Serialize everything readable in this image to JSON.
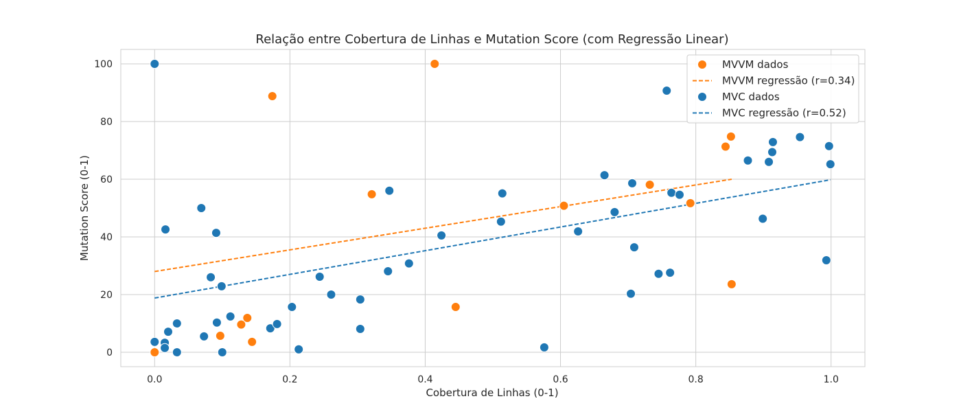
{
  "chart_data": {
    "type": "scatter",
    "title": "Relação entre Cobertura de Linhas e Mutation Score (com Regressão Linear)",
    "xlabel": "Cobertura de Linhas (0-1)",
    "ylabel": "Mutation Score (0-1)",
    "xlim": [
      -0.05,
      1.05
    ],
    "ylim": [
      -5,
      105
    ],
    "xticks": [
      0.0,
      0.2,
      0.4,
      0.6,
      0.8,
      1.0
    ],
    "xtick_labels": [
      "0.0",
      "0.2",
      "0.4",
      "0.6",
      "0.8",
      "1.0"
    ],
    "yticks": [
      0,
      20,
      40,
      60,
      80,
      100
    ],
    "ytick_labels": [
      "0",
      "20",
      "40",
      "60",
      "80",
      "100"
    ],
    "grid": true,
    "legend_position": "top-right",
    "series": [
      {
        "name": "MVC dados",
        "kind": "scatter",
        "color": "#1f77b4",
        "points": [
          [
            0.0,
            100.0
          ],
          [
            0.0,
            3.6
          ],
          [
            0.015,
            3.3
          ],
          [
            0.015,
            1.5
          ],
          [
            0.016,
            42.6
          ],
          [
            0.02,
            7.1
          ],
          [
            0.033,
            10.0
          ],
          [
            0.033,
            0.0
          ],
          [
            0.069,
            50.0
          ],
          [
            0.073,
            5.5
          ],
          [
            0.083,
            26.0
          ],
          [
            0.091,
            41.4
          ],
          [
            0.092,
            10.3
          ],
          [
            0.099,
            22.9
          ],
          [
            0.1,
            0.0
          ],
          [
            0.112,
            12.4
          ],
          [
            0.171,
            8.3
          ],
          [
            0.181,
            9.8
          ],
          [
            0.203,
            15.7
          ],
          [
            0.213,
            1.0
          ],
          [
            0.244,
            26.2
          ],
          [
            0.261,
            20.0
          ],
          [
            0.304,
            18.3
          ],
          [
            0.304,
            8.1
          ],
          [
            0.345,
            28.1
          ],
          [
            0.347,
            56.0
          ],
          [
            0.376,
            30.8
          ],
          [
            0.424,
            40.5
          ],
          [
            0.512,
            45.3
          ],
          [
            0.514,
            55.1
          ],
          [
            0.576,
            1.7
          ],
          [
            0.626,
            41.9
          ],
          [
            0.665,
            61.4
          ],
          [
            0.68,
            48.6
          ],
          [
            0.704,
            20.3
          ],
          [
            0.706,
            58.6
          ],
          [
            0.709,
            36.4
          ],
          [
            0.745,
            27.2
          ],
          [
            0.757,
            90.7
          ],
          [
            0.762,
            27.6
          ],
          [
            0.764,
            55.3
          ],
          [
            0.776,
            54.6
          ],
          [
            0.877,
            66.5
          ],
          [
            0.899,
            46.3
          ],
          [
            0.908,
            66.0
          ],
          [
            0.913,
            69.4
          ],
          [
            0.914,
            72.9
          ],
          [
            0.954,
            74.6
          ],
          [
            0.993,
            31.9
          ],
          [
            0.997,
            71.5
          ],
          [
            0.999,
            65.2
          ]
        ]
      },
      {
        "name": "MVVM dados",
        "kind": "scatter",
        "color": "#ff7f0e",
        "points": [
          [
            0.0,
            0.0
          ],
          [
            0.097,
            5.7
          ],
          [
            0.128,
            9.6
          ],
          [
            0.137,
            11.9
          ],
          [
            0.144,
            3.6
          ],
          [
            0.174,
            88.8
          ],
          [
            0.321,
            54.8
          ],
          [
            0.414,
            100.0
          ],
          [
            0.445,
            15.7
          ],
          [
            0.605,
            50.8
          ],
          [
            0.732,
            58.1
          ],
          [
            0.792,
            51.7
          ],
          [
            0.844,
            71.3
          ],
          [
            0.852,
            74.8
          ],
          [
            0.853,
            23.6
          ]
        ]
      },
      {
        "name": "MVVM regressão (r=0.34)",
        "kind": "line",
        "color": "#ff7f0e",
        "dash": true,
        "points": [
          [
            0.0,
            28.0
          ],
          [
            0.853,
            60.0
          ]
        ]
      },
      {
        "name": "MVC regressão (r=0.52)",
        "kind": "line",
        "color": "#1f77b4",
        "dash": true,
        "points": [
          [
            0.0,
            18.8
          ],
          [
            0.999,
            59.8
          ]
        ]
      }
    ],
    "legend_order": [
      "MVVM dados",
      "MVVM regressão (r=0.34)",
      "MVC dados",
      "MVC regressão (r=0.52)"
    ]
  }
}
